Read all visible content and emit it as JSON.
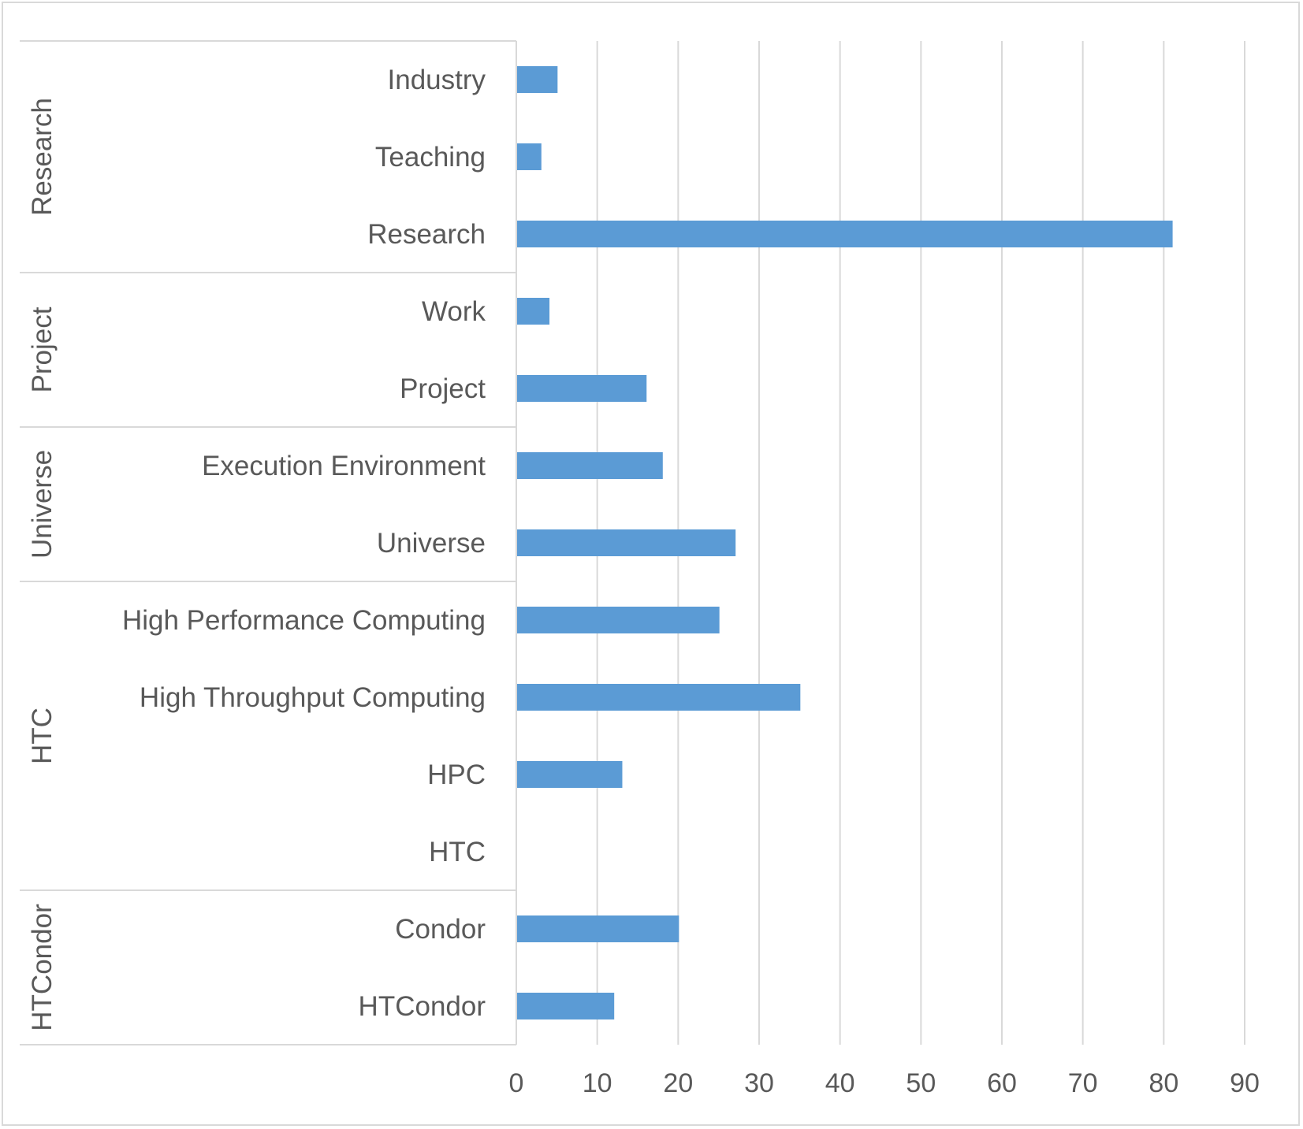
{
  "chart_data": {
    "type": "bar",
    "orientation": "horizontal",
    "title": "",
    "xlabel": "",
    "ylabel": "",
    "xlim": [
      0,
      90
    ],
    "x_ticks": [
      "0",
      "10",
      "20",
      "30",
      "40",
      "50",
      "60",
      "70",
      "80",
      "90"
    ],
    "grid": true,
    "legend": "none",
    "bar_color": "#5b9bd5",
    "grid_color": "#d9d9d9",
    "groups": [
      {
        "name": "Research",
        "categories": [
          "Industry",
          "Teaching",
          "Research"
        ],
        "values": [
          5,
          3,
          81
        ]
      },
      {
        "name": "Project",
        "categories": [
          "Work",
          "Project"
        ],
        "values": [
          4,
          16
        ]
      },
      {
        "name": "Universe",
        "categories": [
          "Execution Environment",
          "Universe"
        ],
        "values": [
          18,
          27
        ]
      },
      {
        "name": "HTC",
        "categories": [
          "High Performance Computing",
          "High Throughput Computing",
          "HPC",
          "HTC"
        ],
        "values": [
          25,
          35,
          13,
          0
        ]
      },
      {
        "name": "HTCondor",
        "categories": [
          "Condor",
          "HTCondor"
        ],
        "values": [
          20,
          12
        ]
      }
    ]
  }
}
